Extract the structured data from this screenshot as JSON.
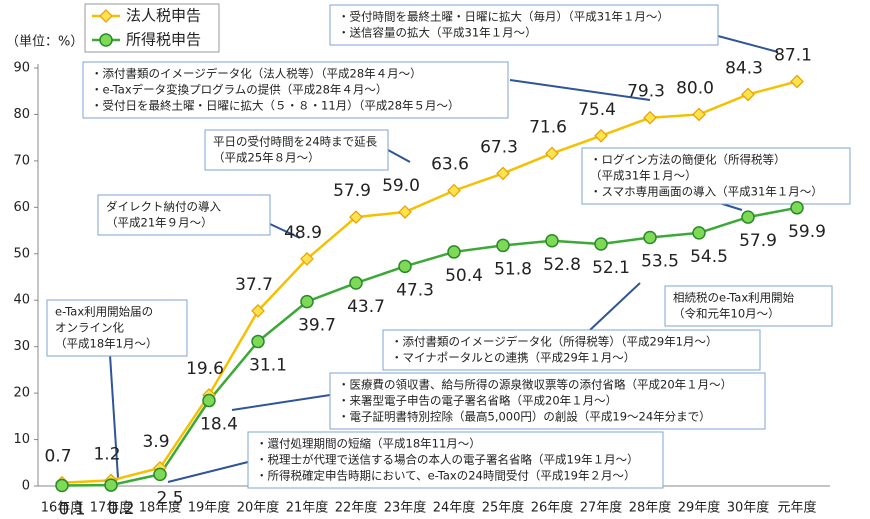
{
  "chart_data": {
    "type": "line",
    "y_label": "（単位：%）",
    "categories": [
      "16年度",
      "17年度",
      "18年度",
      "19年度",
      "20年度",
      "21年度",
      "22年度",
      "23年度",
      "24年度",
      "25年度",
      "26年度",
      "27年度",
      "28年度",
      "29年度",
      "30年度",
      "元年度"
    ],
    "ylim": [
      0,
      90
    ],
    "yticks": [
      0,
      10,
      20,
      30,
      40,
      50,
      60,
      70,
      80,
      90
    ],
    "grid": false,
    "legend": "top-left",
    "series": [
      {
        "name": "法人税申告",
        "color": "#f5c000",
        "marker": "diamond",
        "values": [
          0.7,
          1.2,
          3.9,
          19.6,
          37.7,
          48.9,
          57.9,
          59.0,
          63.6,
          67.3,
          71.6,
          75.4,
          79.3,
          80.0,
          84.3,
          87.1
        ],
        "value_labels": [
          "0.7",
          "1.2",
          "3.9",
          "19.6",
          "37.7",
          "48.9",
          "57.9",
          "59.0",
          "63.6",
          "67.3",
          "71.6",
          "75.4",
          "79.3",
          "80.0",
          "84.3",
          "87.1"
        ]
      },
      {
        "name": "所得税申告",
        "color": "#3aa935",
        "marker": "circle",
        "values": [
          0.1,
          0.2,
          2.5,
          18.4,
          31.1,
          39.7,
          43.7,
          47.3,
          50.4,
          51.8,
          52.8,
          52.1,
          53.5,
          54.5,
          57.9,
          59.9
        ],
        "value_labels": [
          "0.1",
          "0.2",
          "2.5",
          "18.4",
          "31.1",
          "39.7",
          "43.7",
          "47.3",
          "50.4",
          "51.8",
          "52.8",
          "52.1",
          "53.5",
          "54.5",
          "57.9",
          "59.9"
        ]
      }
    ],
    "annotations": [
      {
        "lines": [
          "・受付時間を最終土曜・日曜に拡大（毎月）（平成31年１月～）",
          "・送信容量の拡大（平成31年１月～）"
        ]
      },
      {
        "lines": [
          "・添付書類のイメージデータ化（法人税等）（平成28年４月～）",
          "・e-Taxデータ変換プログラムの提供（平成28年４月～）",
          "・受付日を最終土曜・日曜に拡大（５・８・11月）（平成28年５月～）"
        ]
      },
      {
        "lines": [
          "平日の受付時間を24時まで延長",
          "（平成25年８月～）"
        ]
      },
      {
        "lines": [
          "・ログイン方法の簡便化（所得税等）",
          "（平成31年１月～）",
          "・スマホ専用画面の導入（平成31年１月～）"
        ]
      },
      {
        "lines": [
          "ダイレクト納付の導入",
          "（平成21年９月～）"
        ]
      },
      {
        "lines": [
          "e-Tax利用開始届の",
          "オンライン化",
          "（平成18年1月～）"
        ]
      },
      {
        "lines": [
          "相続税のe-Tax利用開始",
          "（令和元年10月～）"
        ]
      },
      {
        "lines": [
          "・添付書類のイメージデータ化（所得税等）（平成29年1月～）",
          "・マイナポータルとの連携（平成29年１月～）"
        ]
      },
      {
        "lines": [
          "・医療費の領収書、給与所得の源泉徴収票等の添付省略（平成20年１月～）",
          "・来署型電子申告の電子署名省略（平成20年１月～）",
          "・電子証明書特別控除（最高5,000円）の創設（平成19～24年分まで）"
        ]
      },
      {
        "lines": [
          "・還付処理期間の短縮（平成18年11月～）",
          "・税理士が代理で送信する場合の本人の電子署名省略（平成19年１月～）",
          "・所得税確定申告時期において、e-Taxの24時間受付（平成19年２月～）"
        ]
      }
    ]
  }
}
